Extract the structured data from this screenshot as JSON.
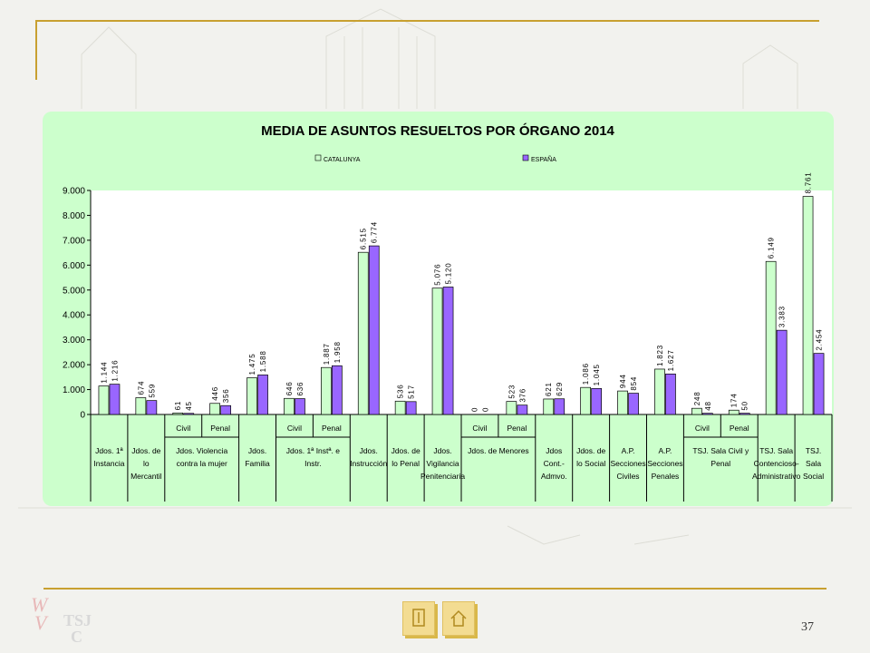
{
  "slide": {
    "page_number": "37"
  },
  "nav": {
    "prev_icon": "document-icon",
    "home_icon": "home-icon"
  },
  "logo": {
    "text": "TSJC"
  },
  "colors": {
    "catalunya": "#ccffcc",
    "espana": "#9966ff",
    "panel": "#ccffcc",
    "frame": "#c8a030"
  },
  "chart_data": {
    "type": "bar",
    "title": "MEDIA DE ASUNTOS RESUELTOS POR ÓRGANO 2014",
    "legend_position": "top",
    "ylim": [
      0,
      9000
    ],
    "yticks": [
      "0",
      "1.000",
      "2.000",
      "3.000",
      "4.000",
      "5.000",
      "6.000",
      "7.000",
      "8.000",
      "9.000"
    ],
    "grid": false,
    "series": [
      {
        "name": "CATALUNYA",
        "values": [
          1144,
          674,
          61,
          446,
          1475,
          646,
          1887,
          6515,
          536,
          5076,
          0,
          523,
          621,
          1086,
          944,
          1823,
          248,
          174,
          6149,
          8761
        ],
        "labels": [
          "1.144",
          "674",
          "61",
          "446",
          "1.475",
          "646",
          "1.887",
          "6.515",
          "536",
          "5.076",
          "0",
          "523",
          "621",
          "1.086",
          "944",
          "1.823",
          "248",
          "174",
          "6.149",
          "8.761"
        ]
      },
      {
        "name": "ESPAÑA",
        "values": [
          1216,
          559,
          45,
          356,
          1588,
          636,
          1958,
          6774,
          517,
          5120,
          0,
          376,
          629,
          1045,
          854,
          1627,
          48,
          50,
          3383,
          2454
        ],
        "labels": [
          "1.216",
          "559",
          "45",
          "356",
          "1.588",
          "636",
          "1.958",
          "6.774",
          "517",
          "5.120",
          "0",
          "376",
          "629",
          "1.045",
          "854",
          "1.627",
          "48",
          "50",
          "3.383",
          "2.454"
        ]
      }
    ],
    "sub_labels": [
      "",
      "",
      "Civil",
      "Penal",
      "",
      "Civil",
      "Penal",
      "",
      "",
      "",
      "Civil",
      "Penal",
      "",
      "",
      "",
      "",
      "Civil",
      "Penal",
      "",
      ""
    ],
    "groups": [
      {
        "lines": [
          "Jdos. 1ª",
          "Instancia"
        ],
        "span": 1
      },
      {
        "lines": [
          "Jdos. de",
          "lo",
          "Mercantil"
        ],
        "span": 1
      },
      {
        "lines": [
          "Jdos. Violencia",
          "contra la mujer"
        ],
        "span": 2
      },
      {
        "lines": [
          "Jdos.",
          "Familia"
        ],
        "span": 1
      },
      {
        "lines": [
          "Jdos. 1ª Instª. e",
          "Instr."
        ],
        "span": 2
      },
      {
        "lines": [
          "Jdos.",
          "Instrucción"
        ],
        "span": 1
      },
      {
        "lines": [
          "Jdos. de",
          "lo Penal"
        ],
        "span": 1
      },
      {
        "lines": [
          "Jdos.",
          "Vigilancia",
          "Penitenciaria"
        ],
        "span": 1
      },
      {
        "lines": [
          "Jdos. de Menores"
        ],
        "span": 2
      },
      {
        "lines": [
          "Jdos",
          "Cont.-",
          "Admvo."
        ],
        "span": 1
      },
      {
        "lines": [
          "Jdos. de",
          "lo Social"
        ],
        "span": 1
      },
      {
        "lines": [
          "A.P.",
          "Secciones",
          "Civiles"
        ],
        "span": 1
      },
      {
        "lines": [
          "A.P.",
          "Secciones",
          "Penales"
        ],
        "span": 1
      },
      {
        "lines": [
          "TSJ. Sala Civil y",
          "Penal"
        ],
        "span": 2
      },
      {
        "lines": [
          "TSJ. Sala",
          "Contencioso-",
          "Administrativo"
        ],
        "span": 1
      },
      {
        "lines": [
          "TSJ.",
          "Sala",
          "Social"
        ],
        "span": 1
      }
    ]
  }
}
